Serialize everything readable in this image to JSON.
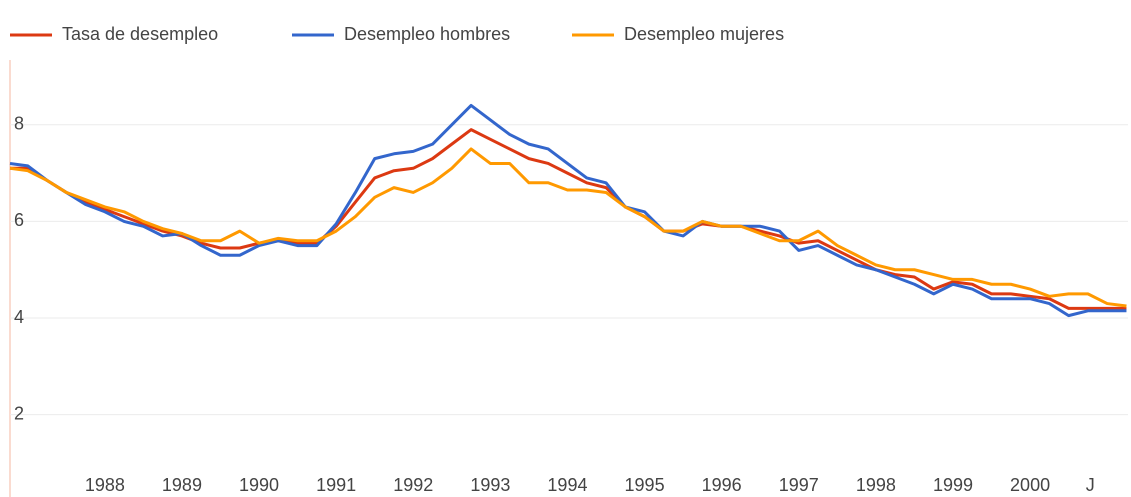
{
  "chart_data": {
    "type": "line",
    "x": [
      1986.77,
      1987.0,
      1987.25,
      1987.5,
      1987.75,
      1988.0,
      1988.25,
      1988.5,
      1988.75,
      1989.0,
      1989.25,
      1989.5,
      1989.75,
      1990.0,
      1990.25,
      1990.5,
      1990.75,
      1991.0,
      1991.25,
      1991.5,
      1991.75,
      1992.0,
      1992.25,
      1992.5,
      1992.75,
      1993.0,
      1993.25,
      1993.5,
      1993.75,
      1994.0,
      1994.25,
      1994.5,
      1994.75,
      1995.0,
      1995.25,
      1995.5,
      1995.75,
      1996.0,
      1996.25,
      1996.5,
      1996.75,
      1997.0,
      1997.25,
      1997.5,
      1997.75,
      1998.0,
      1998.25,
      1998.5,
      1998.75,
      1999.0,
      1999.25,
      1999.5,
      1999.75,
      2000.0,
      2000.25,
      2000.5,
      2000.75,
      2001.0,
      2001.25
    ],
    "series": [
      {
        "name": "Tasa de desempleo",
        "color": "#dc3912",
        "values": [
          7.1,
          7.1,
          6.85,
          6.6,
          6.4,
          6.25,
          6.1,
          5.95,
          5.8,
          5.7,
          5.55,
          5.45,
          5.45,
          5.55,
          5.6,
          5.55,
          5.55,
          5.9,
          6.4,
          6.9,
          7.05,
          7.1,
          7.3,
          7.6,
          7.9,
          7.7,
          7.5,
          7.3,
          7.2,
          7.0,
          6.8,
          6.7,
          6.3,
          6.1,
          5.8,
          5.8,
          5.95,
          5.9,
          5.9,
          5.8,
          5.7,
          5.55,
          5.6,
          5.4,
          5.2,
          5.0,
          4.9,
          4.85,
          4.6,
          4.75,
          4.7,
          4.5,
          4.5,
          4.45,
          4.4,
          4.2,
          4.2,
          4.2,
          4.2
        ]
      },
      {
        "name": "Desempleo hombres",
        "color": "#3366cc",
        "values": [
          7.2,
          7.15,
          6.85,
          6.6,
          6.35,
          6.2,
          6.0,
          5.9,
          5.7,
          5.75,
          5.5,
          5.3,
          5.3,
          5.5,
          5.6,
          5.5,
          5.5,
          5.95,
          6.6,
          7.3,
          7.4,
          7.45,
          7.6,
          8.0,
          8.4,
          8.1,
          7.8,
          7.6,
          7.5,
          7.2,
          6.9,
          6.8,
          6.3,
          6.2,
          5.8,
          5.7,
          6.0,
          5.9,
          5.9,
          5.9,
          5.8,
          5.4,
          5.5,
          5.3,
          5.1,
          5.0,
          4.85,
          4.7,
          4.5,
          4.7,
          4.6,
          4.4,
          4.4,
          4.4,
          4.3,
          4.05,
          4.15,
          4.15,
          4.15
        ]
      },
      {
        "name": "Desempleo mujeres",
        "color": "#ff9900",
        "values": [
          7.1,
          7.05,
          6.85,
          6.6,
          6.45,
          6.3,
          6.2,
          6.0,
          5.85,
          5.75,
          5.6,
          5.6,
          5.8,
          5.55,
          5.65,
          5.6,
          5.6,
          5.8,
          6.1,
          6.5,
          6.7,
          6.6,
          6.8,
          7.1,
          7.5,
          7.2,
          7.2,
          6.8,
          6.8,
          6.65,
          6.65,
          6.6,
          6.3,
          6.1,
          5.8,
          5.8,
          6.0,
          5.9,
          5.9,
          5.75,
          5.6,
          5.6,
          5.8,
          5.5,
          5.3,
          5.1,
          5.0,
          5.0,
          4.9,
          4.8,
          4.8,
          4.7,
          4.7,
          4.6,
          4.45,
          4.5,
          4.5,
          4.3,
          4.25
        ]
      }
    ],
    "xlim": [
      1986.77,
      2001.27
    ],
    "xticks": [
      1988,
      1989,
      1990,
      1991,
      1992,
      1993,
      1994,
      1995,
      1996,
      1997,
      1998,
      1999,
      2000,
      {
        "value": 2000.78,
        "label": "J"
      }
    ],
    "ylim": [
      1,
      9.3
    ],
    "yticks": [
      2,
      4,
      6,
      8
    ],
    "grid": true,
    "legend": "top"
  }
}
